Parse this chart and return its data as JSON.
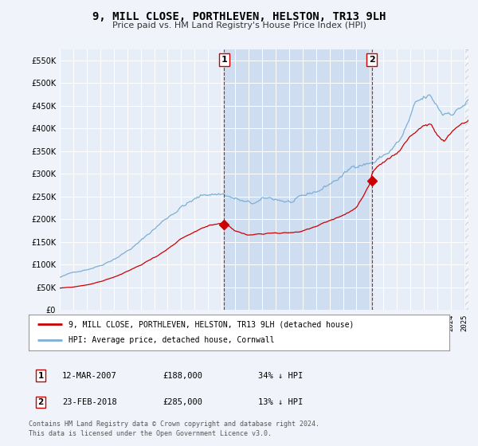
{
  "title": "9, MILL CLOSE, PORTHLEVEN, HELSTON, TR13 9LH",
  "subtitle": "Price paid vs. HM Land Registry's House Price Index (HPI)",
  "ylim": [
    0,
    575000
  ],
  "yticks": [
    0,
    50000,
    100000,
    150000,
    200000,
    250000,
    300000,
    350000,
    400000,
    450000,
    500000,
    550000
  ],
  "bg_color": "#f0f4fa",
  "plot_bg_color": "#e8eef8",
  "grid_color": "#ffffff",
  "highlight_color": "#cfddf0",
  "legend_label_red": "9, MILL CLOSE, PORTHLEVEN, HELSTON, TR13 9LH (detached house)",
  "legend_label_blue": "HPI: Average price, detached house, Cornwall",
  "footer": "Contains HM Land Registry data © Crown copyright and database right 2024.\nThis data is licensed under the Open Government Licence v3.0.",
  "transaction1_label": "1",
  "transaction1_date": "12-MAR-2007",
  "transaction1_price": "£188,000",
  "transaction1_hpi": "34% ↓ HPI",
  "transaction2_label": "2",
  "transaction2_date": "23-FEB-2018",
  "transaction2_price": "£285,000",
  "transaction2_hpi": "13% ↓ HPI",
  "marker1_x": 2007.19,
  "marker1_y": 188000,
  "marker2_x": 2018.14,
  "marker2_y": 285000,
  "vline1_x": 2007.19,
  "vline2_x": 2018.14,
  "red_color": "#cc0000",
  "blue_color": "#7bafd4",
  "xlim_left": 1995.0,
  "xlim_right": 2025.3
}
